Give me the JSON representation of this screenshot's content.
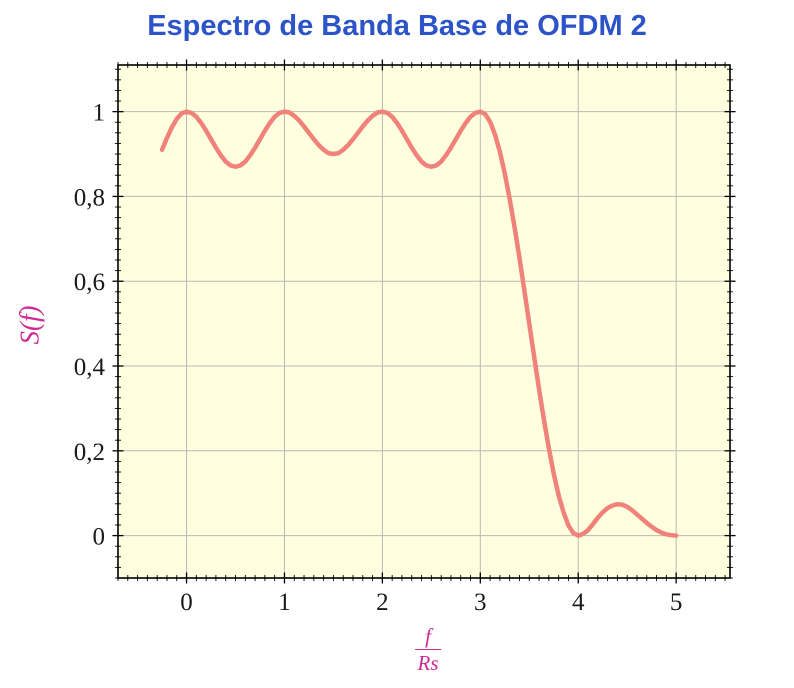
{
  "page": {
    "background": "#ffffff"
  },
  "title": {
    "text": "Espectro de Banda Base de OFDM 2"
  },
  "labels": {
    "ylabel": "S(f)",
    "xlabel_frac": {
      "numerator": "f",
      "denominator": "Rs"
    }
  },
  "colors": {
    "title": "#2c54c8",
    "axis_label": "#cf2a94",
    "curve": "#f0827a",
    "plot_bg": "#ffffe0",
    "grid": "#b8b8b8",
    "frame": "#000000",
    "tick": "#000000",
    "tick_label": "#1b1b1b"
  },
  "chart_data": {
    "type": "line",
    "title": "Espectro de Banda Base de OFDM 2",
    "xlabel": "f/Rs",
    "ylabel": "S(f)",
    "xlim": [
      -0.7,
      5.55
    ],
    "ylim": [
      -0.1,
      1.11
    ],
    "xticks": [
      0,
      1,
      2,
      3,
      4,
      5
    ],
    "xtick_labels": [
      "0",
      "1",
      "2",
      "3",
      "4",
      "5"
    ],
    "yticks": [
      0,
      0.2,
      0.4,
      0.6,
      0.8,
      1
    ],
    "ytick_labels": [
      "0",
      "0,2",
      "0,4",
      "0,6",
      "0,8",
      "1"
    ],
    "x_minor_step": 0.1,
    "y_minor_step": 0.025,
    "grid": true,
    "legend": "none",
    "series": [
      {
        "name": "S(f)",
        "x": [
          -0.25,
          -0.2,
          -0.15,
          -0.1,
          -0.05,
          0,
          0.05,
          0.1,
          0.15,
          0.2,
          0.25,
          0.3,
          0.35,
          0.4,
          0.45,
          0.5,
          0.55,
          0.6,
          0.65,
          0.7,
          0.75,
          0.8,
          0.85,
          0.9,
          0.95,
          1,
          1.05,
          1.1,
          1.15,
          1.2,
          1.25,
          1.3,
          1.35,
          1.4,
          1.45,
          1.5,
          1.55,
          1.6,
          1.65,
          1.7,
          1.75,
          1.8,
          1.85,
          1.9,
          1.95,
          2,
          2.05,
          2.1,
          2.15,
          2.2,
          2.25,
          2.3,
          2.35,
          2.4,
          2.45,
          2.5,
          2.55,
          2.6,
          2.65,
          2.7,
          2.75,
          2.8,
          2.85,
          2.9,
          2.95,
          3,
          3.05,
          3.1,
          3.15,
          3.2,
          3.25,
          3.3,
          3.35,
          3.4,
          3.45,
          3.5,
          3.55,
          3.6,
          3.65,
          3.7,
          3.75,
          3.8,
          3.85,
          3.9,
          3.95,
          4,
          4.05,
          4.1,
          4.15,
          4.2,
          4.25,
          4.3,
          4.35,
          4.4,
          4.45,
          4.5,
          4.55,
          4.6,
          4.65,
          4.7,
          4.75,
          4.8,
          4.85,
          4.9,
          4.95,
          5
        ],
        "y": [
          0.91,
          0.938,
          0.963,
          0.983,
          0.996,
          1.0,
          0.997,
          0.988,
          0.973,
          0.955,
          0.935,
          0.915,
          0.897,
          0.882,
          0.873,
          0.87,
          0.873,
          0.882,
          0.897,
          0.915,
          0.935,
          0.955,
          0.973,
          0.988,
          0.997,
          1.0,
          0.998,
          0.99,
          0.979,
          0.965,
          0.95,
          0.935,
          0.921,
          0.91,
          0.902,
          0.9,
          0.902,
          0.91,
          0.921,
          0.935,
          0.95,
          0.965,
          0.979,
          0.99,
          0.998,
          1.0,
          0.997,
          0.988,
          0.973,
          0.955,
          0.935,
          0.915,
          0.897,
          0.882,
          0.873,
          0.87,
          0.873,
          0.882,
          0.897,
          0.915,
          0.935,
          0.955,
          0.973,
          0.988,
          0.997,
          1.0,
          0.994,
          0.976,
          0.946,
          0.905,
          0.854,
          0.794,
          0.727,
          0.655,
          0.578,
          0.5,
          0.422,
          0.345,
          0.273,
          0.206,
          0.146,
          0.095,
          0.055,
          0.024,
          0.006,
          0.0,
          0.004,
          0.013,
          0.027,
          0.042,
          0.055,
          0.065,
          0.071,
          0.074,
          0.073,
          0.068,
          0.06,
          0.05,
          0.04,
          0.03,
          0.021,
          0.013,
          0.007,
          0.003,
          0.001,
          0.0
        ]
      }
    ]
  }
}
